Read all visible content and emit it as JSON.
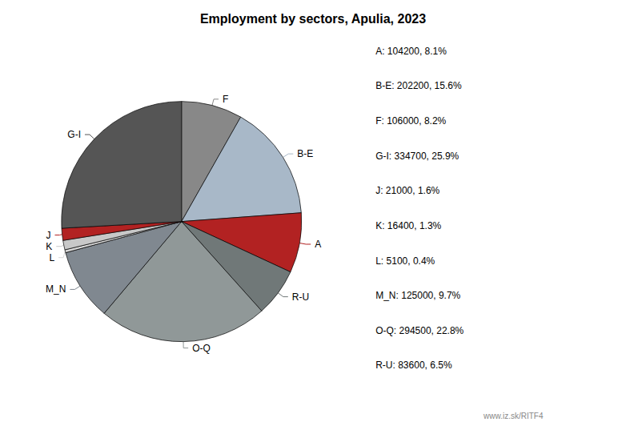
{
  "chart_data": {
    "type": "pie",
    "title": "Employment by sectors, Apulia, 2023",
    "categories": [
      "F",
      "B-E",
      "A",
      "R-U",
      "O-Q",
      "M_N",
      "L",
      "K",
      "J",
      "G-I"
    ],
    "values": [
      106000,
      202200,
      104200,
      83600,
      294500,
      125000,
      5100,
      16400,
      21000,
      334700
    ],
    "colors": [
      "#888888",
      "#a8b8c8",
      "#b22222",
      "#707878",
      "#909898",
      "#808890",
      "#d8d8d8",
      "#c8c8c8",
      "#b22222",
      "#555555"
    ],
    "annotations": [
      "A: 104200, 8.1%",
      "B-E: 202200, 15.6%",
      "F: 106000, 8.2%",
      "G-I: 334700, 25.9%",
      "J: 21000, 1.6%",
      "K: 16400, 1.3%",
      "L: 5100, 0.4%",
      "M_N: 125000, 9.7%",
      "O-Q: 294500, 22.8%",
      "R-U: 83600, 6.5%",
      "www.iz.sk/RITF4"
    ]
  }
}
